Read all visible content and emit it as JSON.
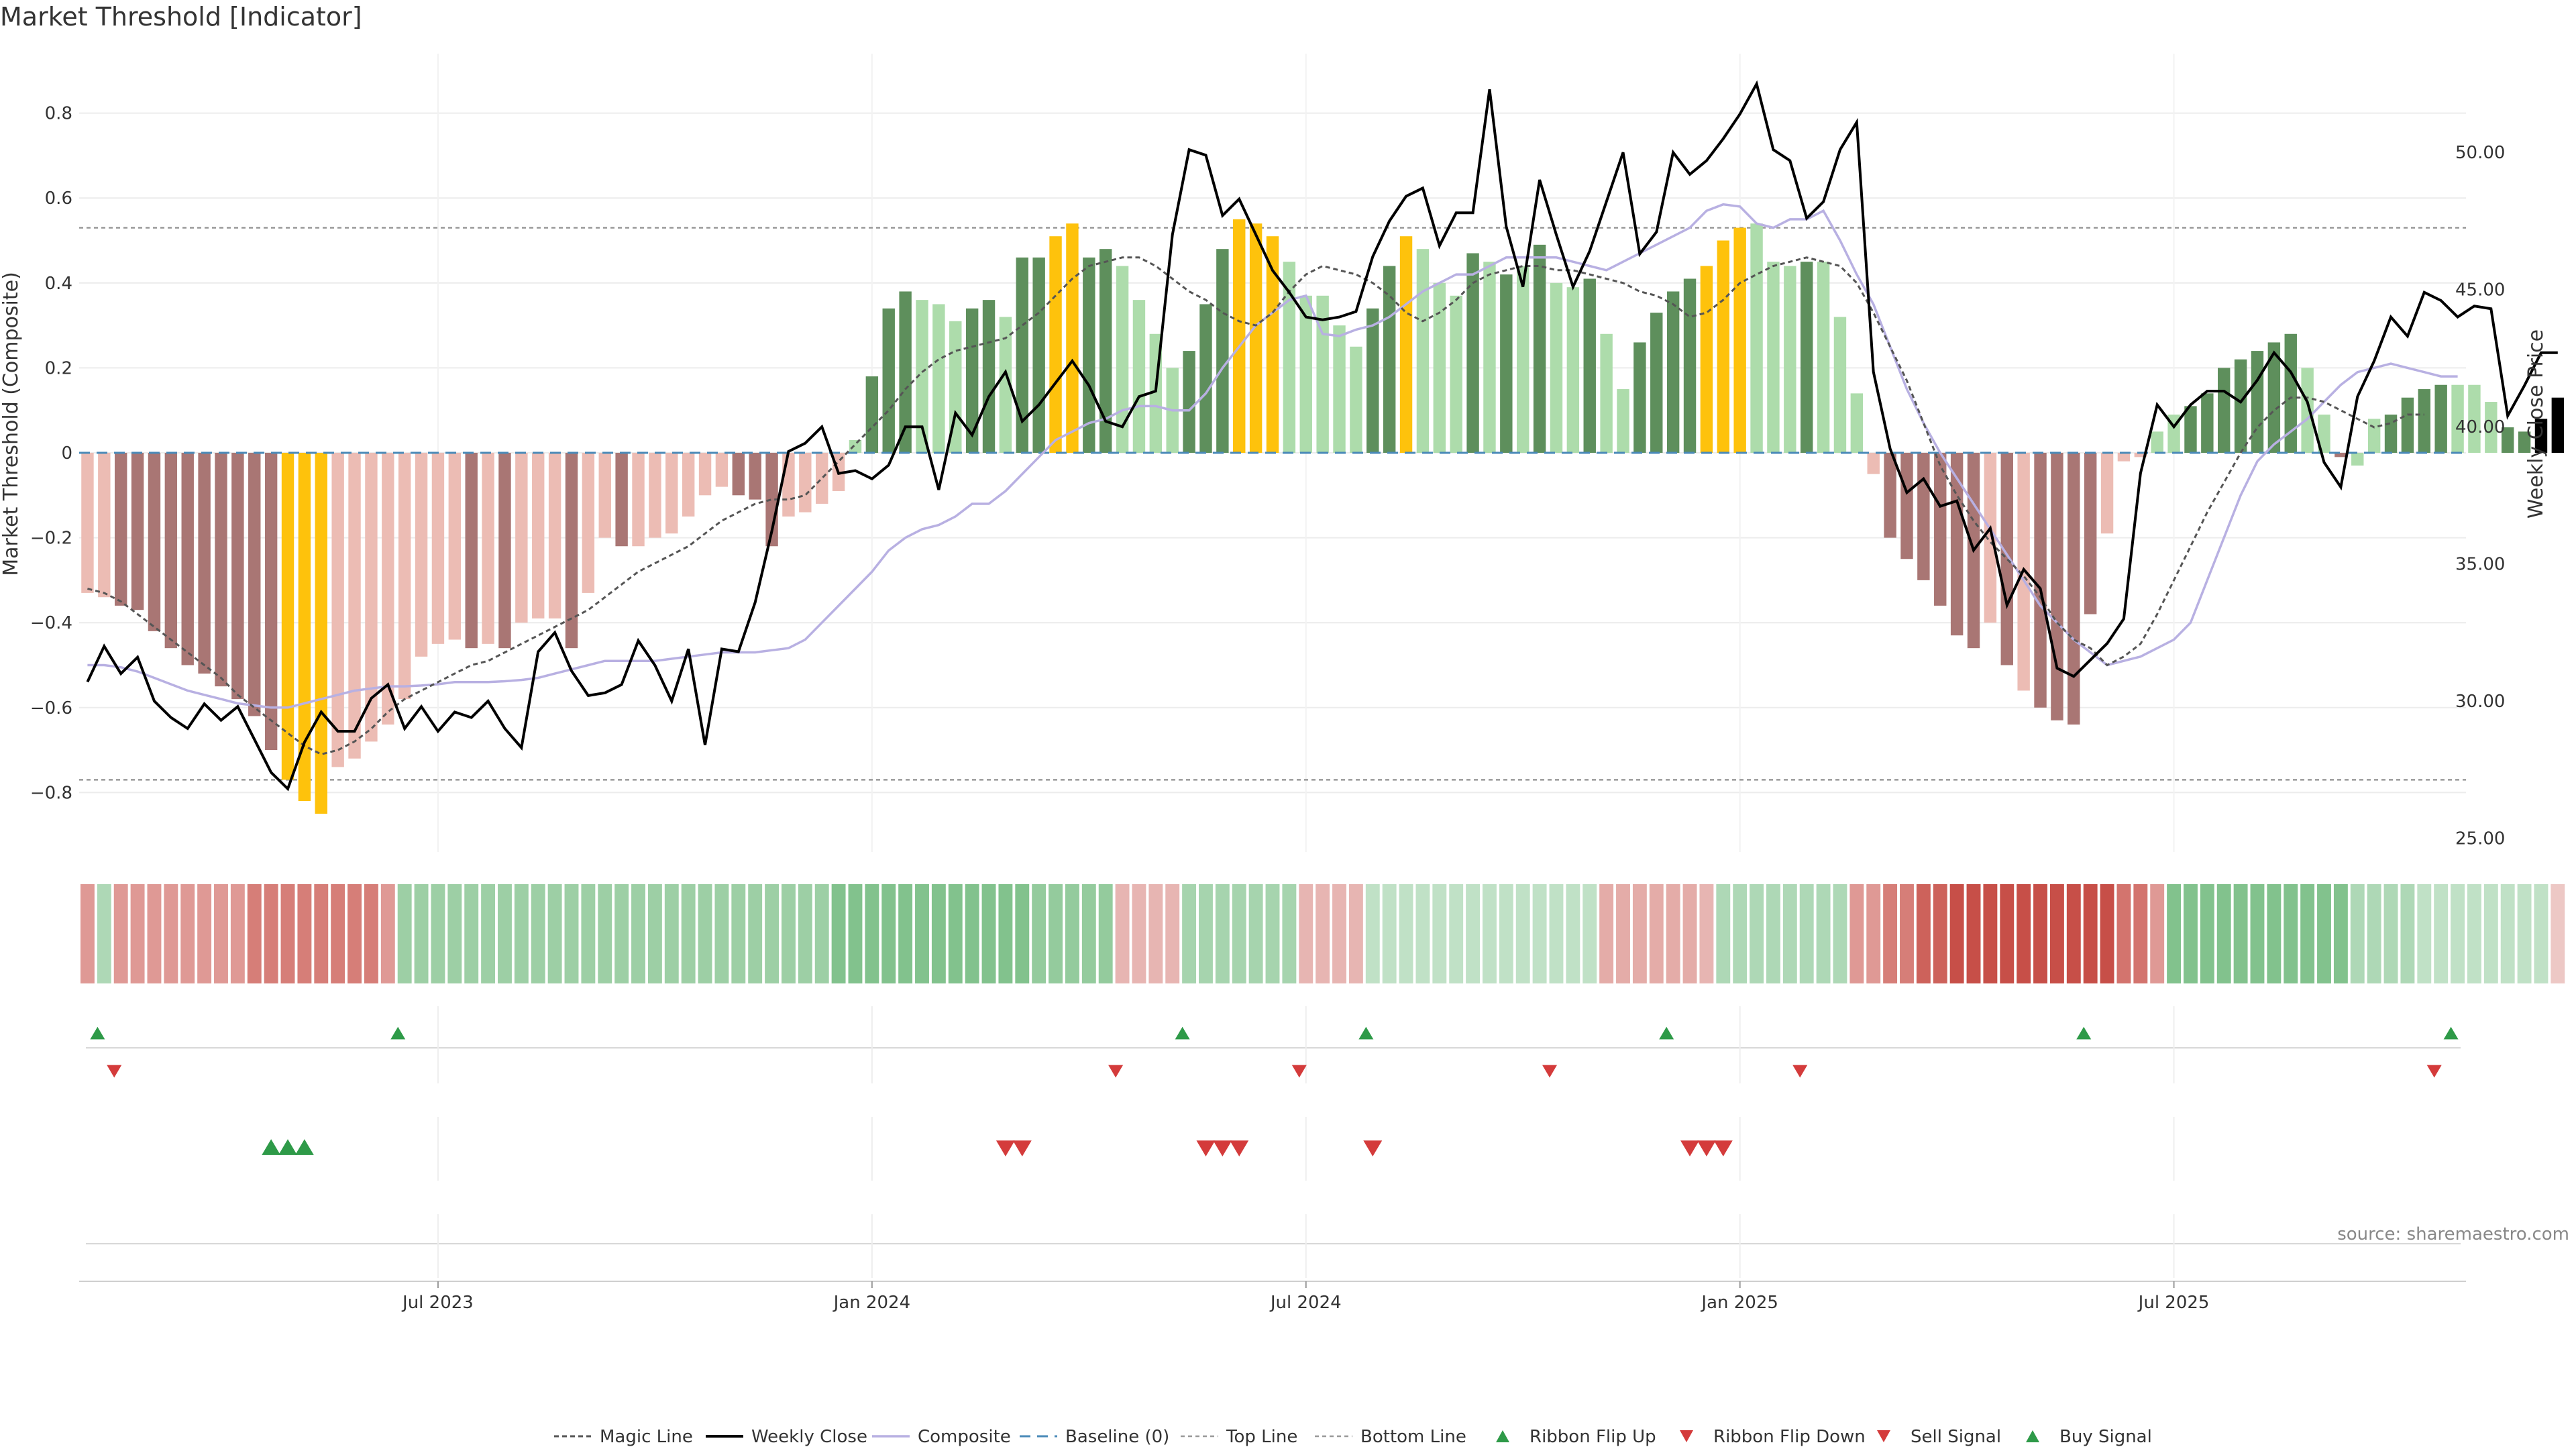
{
  "chart_data": {
    "type": "bar",
    "title": "Market Threshold [Indicator]",
    "source": "source: sharemaestro.com",
    "ylabel_left": "Market Threshold (Composite)",
    "ylabel_right": "Weekly Close Price",
    "y_left_ticks": [
      "0.8",
      "0.6",
      "0.4",
      "0.2",
      "0",
      "−0.2",
      "−0.4",
      "−0.6",
      "−0.8"
    ],
    "y_left_tick_values": [
      0.8,
      0.6,
      0.4,
      0.2,
      0,
      -0.2,
      -0.4,
      -0.6,
      -0.8
    ],
    "y_right_ticks": [
      "50.00",
      "45.00",
      "40.00",
      "35.00",
      "30.00",
      "25.00"
    ],
    "y_right_tick_values": [
      50,
      45,
      40,
      35,
      30,
      25
    ],
    "ylim_left": [
      -0.94,
      0.94
    ],
    "ylim_right": [
      24.5,
      53.6
    ],
    "x_ticks": [
      "Jul 2023",
      "Jan 2024",
      "Jul 2024",
      "Jan 2025",
      "Jul 2025"
    ],
    "x_tick_weeks": [
      21,
      47,
      73,
      99,
      125
    ],
    "n_weeks": 143,
    "top_line": 0.53,
    "bottom_line": -0.77,
    "baseline": 0,
    "colors": {
      "bar_dark_red": "#a97674",
      "bar_light_red": "#ecbcb4",
      "bar_dark_green": "#5e8f5c",
      "bar_light_green": "#addcab",
      "bar_yellow": "#fec20c",
      "close": "#000000",
      "composite": "#b8b0e2",
      "magic": "#555555",
      "baseline": "#4a8ab8",
      "limit": "#999999",
      "up_marker": "#2e9a48",
      "down_marker": "#d43b3b"
    },
    "series": [
      {
        "name": "Composite",
        "values": [
          -0.5,
          -0.5,
          -0.505,
          -0.515,
          -0.53,
          -0.545,
          -0.56,
          -0.57,
          -0.58,
          -0.59,
          -0.595,
          -0.6,
          -0.6,
          -0.59,
          -0.58,
          -0.57,
          -0.56,
          -0.555,
          -0.55,
          -0.55,
          -0.548,
          -0.545,
          -0.54,
          -0.54,
          -0.54,
          -0.538,
          -0.535,
          -0.53,
          -0.52,
          -0.51,
          -0.5,
          -0.49,
          -0.49,
          -0.49,
          -0.49,
          -0.485,
          -0.48,
          -0.475,
          -0.47,
          -0.47,
          -0.47,
          -0.465,
          -0.46,
          -0.44,
          -0.4,
          -0.36,
          -0.32,
          -0.28,
          -0.23,
          -0.2,
          -0.18,
          -0.17,
          -0.15,
          -0.12,
          -0.12,
          -0.09,
          -0.05,
          -0.01,
          0.03,
          0.05,
          0.07,
          0.08,
          0.1,
          0.11,
          0.11,
          0.1,
          0.1,
          0.14,
          0.2,
          0.25,
          0.3,
          0.33,
          0.36,
          0.37,
          0.28,
          0.275,
          0.29,
          0.3,
          0.32,
          0.35,
          0.38,
          0.4,
          0.42,
          0.42,
          0.44,
          0.46,
          0.46,
          0.46,
          0.46,
          0.45,
          0.44,
          0.43,
          0.45,
          0.47,
          0.49,
          0.51,
          0.53,
          0.57,
          0.585,
          0.58,
          0.54,
          0.53,
          0.55,
          0.55,
          0.57,
          0.5,
          0.42,
          0.35,
          0.25,
          0.15,
          0.07,
          0.0,
          -0.06,
          -0.12,
          -0.18,
          -0.24,
          -0.3,
          -0.36,
          -0.4,
          -0.44,
          -0.47,
          -0.5,
          -0.49,
          -0.48,
          -0.46,
          -0.44,
          -0.4,
          -0.3,
          -0.2,
          -0.1,
          -0.02,
          0.02,
          0.05,
          0.08,
          0.12,
          0.16,
          0.19,
          0.2,
          0.21,
          0.2,
          0.19,
          0.18,
          0.18
        ]
      },
      {
        "name": "Magic Line",
        "values": [
          -0.32,
          -0.33,
          -0.35,
          -0.38,
          -0.41,
          -0.44,
          -0.47,
          -0.5,
          -0.53,
          -0.57,
          -0.6,
          -0.63,
          -0.66,
          -0.69,
          -0.71,
          -0.7,
          -0.68,
          -0.65,
          -0.61,
          -0.58,
          -0.56,
          -0.54,
          -0.52,
          -0.5,
          -0.49,
          -0.47,
          -0.45,
          -0.43,
          -0.41,
          -0.39,
          -0.37,
          -0.34,
          -0.31,
          -0.28,
          -0.26,
          -0.24,
          -0.22,
          -0.19,
          -0.16,
          -0.14,
          -0.12,
          -0.11,
          -0.11,
          -0.1,
          -0.06,
          -0.02,
          0.02,
          0.06,
          0.1,
          0.15,
          0.19,
          0.22,
          0.24,
          0.25,
          0.26,
          0.27,
          0.3,
          0.33,
          0.37,
          0.41,
          0.44,
          0.45,
          0.46,
          0.46,
          0.44,
          0.41,
          0.38,
          0.36,
          0.33,
          0.31,
          0.3,
          0.33,
          0.38,
          0.42,
          0.44,
          0.43,
          0.42,
          0.4,
          0.37,
          0.33,
          0.31,
          0.33,
          0.36,
          0.4,
          0.42,
          0.43,
          0.44,
          0.44,
          0.43,
          0.43,
          0.42,
          0.41,
          0.4,
          0.38,
          0.37,
          0.35,
          0.32,
          0.33,
          0.36,
          0.4,
          0.42,
          0.44,
          0.45,
          0.46,
          0.45,
          0.44,
          0.4,
          0.33,
          0.25,
          0.17,
          0.07,
          -0.03,
          -0.1,
          -0.16,
          -0.21,
          -0.25,
          -0.29,
          -0.34,
          -0.4,
          -0.44,
          -0.46,
          -0.5,
          -0.48,
          -0.45,
          -0.38,
          -0.3,
          -0.22,
          -0.14,
          -0.07,
          0.0,
          0.06,
          0.1,
          0.13,
          0.13,
          0.12,
          0.1,
          0.08,
          0.06,
          0.07,
          0.09,
          0.09
        ]
      },
      {
        "name": "Weekly Close",
        "values": [
          30.7,
          32.0,
          31.0,
          31.6,
          30.0,
          29.4,
          29.0,
          29.9,
          29.3,
          29.8,
          28.6,
          27.4,
          26.8,
          28.5,
          29.6,
          28.9,
          28.9,
          30.1,
          30.6,
          29.0,
          29.8,
          28.9,
          29.6,
          29.4,
          30.0,
          29.0,
          28.3,
          31.8,
          32.5,
          31.1,
          30.2,
          30.3,
          30.6,
          32.2,
          31.3,
          30.0,
          31.9,
          28.4,
          31.9,
          31.8,
          33.6,
          36.2,
          39.1,
          39.4,
          40.0,
          38.3,
          38.4,
          38.1,
          38.6,
          40.0,
          40.0,
          37.7,
          40.5,
          39.7,
          41.1,
          42.0,
          40.2,
          40.8,
          41.6,
          42.4,
          41.5,
          40.2,
          40.0,
          41.1,
          41.3,
          47.0,
          50.1,
          49.9,
          47.7,
          48.3,
          47.0,
          45.7,
          44.9,
          44.0,
          43.9,
          44.0,
          44.2,
          46.2,
          47.5,
          48.4,
          48.7,
          46.6,
          47.8,
          47.8,
          52.3,
          47.3,
          45.1,
          49.0,
          47.0,
          45.1,
          46.4,
          48.2,
          50.0,
          46.3,
          47.1,
          50.0,
          49.2,
          49.7,
          50.5,
          51.4,
          52.5,
          50.1,
          49.7,
          47.6,
          48.2,
          50.1,
          51.1,
          42.0,
          39.2,
          37.6,
          38.1,
          37.1,
          37.3,
          35.5,
          36.3,
          33.5,
          34.8,
          34.1,
          31.2,
          30.9,
          31.5,
          32.1,
          33.0,
          38.3,
          40.8,
          40.0,
          40.8,
          41.3,
          41.3,
          40.9,
          41.7,
          42.7,
          42.0,
          40.9,
          38.7,
          37.8,
          41.1,
          42.4,
          44.0,
          43.3,
          44.9,
          44.6,
          44.0,
          44.4,
          44.3,
          40.4,
          41.5,
          42.7,
          42.7
        ]
      },
      {
        "name": "Histogram",
        "values": [
          -0.33,
          -0.34,
          -0.36,
          -0.37,
          -0.42,
          -0.46,
          -0.5,
          -0.52,
          -0.55,
          -0.58,
          -0.62,
          -0.7,
          -0.77,
          -0.82,
          -0.85,
          -0.74,
          -0.72,
          -0.68,
          -0.64,
          -0.58,
          -0.48,
          -0.45,
          -0.44,
          -0.46,
          -0.45,
          -0.46,
          -0.4,
          -0.39,
          -0.39,
          -0.46,
          -0.33,
          -0.2,
          -0.22,
          -0.22,
          -0.2,
          -0.19,
          -0.15,
          -0.1,
          -0.08,
          -0.1,
          -0.11,
          -0.22,
          -0.15,
          -0.14,
          -0.12,
          -0.09,
          0.03,
          0.18,
          0.34,
          0.38,
          0.36,
          0.35,
          0.31,
          0.34,
          0.36,
          0.32,
          0.46,
          0.46,
          0.51,
          0.54,
          0.46,
          0.48,
          0.44,
          0.36,
          0.28,
          0.2,
          0.24,
          0.35,
          0.48,
          0.55,
          0.54,
          0.51,
          0.45,
          0.37,
          0.37,
          0.3,
          0.25,
          0.34,
          0.44,
          0.51,
          0.48,
          0.4,
          0.37,
          0.47,
          0.45,
          0.42,
          0.44,
          0.49,
          0.4,
          0.39,
          0.41,
          0.28,
          0.15,
          0.26,
          0.33,
          0.38,
          0.41,
          0.44,
          0.5,
          0.53,
          0.54,
          0.45,
          0.44,
          0.45,
          0.45,
          0.32,
          0.14,
          -0.05,
          -0.2,
          -0.25,
          -0.3,
          -0.36,
          -0.43,
          -0.46,
          -0.4,
          -0.5,
          -0.56,
          -0.6,
          -0.63,
          -0.64,
          -0.38,
          -0.19,
          -0.02,
          -0.01,
          0.05,
          0.09,
          0.11,
          0.14,
          0.2,
          0.22,
          0.24,
          0.26,
          0.28,
          0.2,
          0.09,
          -0.01,
          -0.03,
          0.08,
          0.09,
          0.13,
          0.15,
          0.16,
          0.16,
          0.16,
          0.12,
          0.06,
          0.05,
          0.08,
          0.13
        ]
      },
      {
        "name": "Bar Color",
        "values": [
          "light_red",
          "light_red",
          "dark_red",
          "dark_red",
          "dark_red",
          "dark_red",
          "dark_red",
          "dark_red",
          "dark_red",
          "dark_red",
          "dark_red",
          "dark_red",
          "yellow",
          "yellow",
          "yellow",
          "light_red",
          "light_red",
          "light_red",
          "light_red",
          "light_red",
          "light_red",
          "light_red",
          "light_red",
          "dark_red",
          "light_red",
          "dark_red",
          "light_red",
          "light_red",
          "light_red",
          "dark_red",
          "light_red",
          "light_red",
          "dark_red",
          "light_red",
          "light_red",
          "light_red",
          "light_red",
          "light_red",
          "light_red",
          "dark_red",
          "dark_red",
          "dark_red",
          "light_red",
          "light_red",
          "light_red",
          "light_red",
          "light_green",
          "dark_green",
          "dark_green",
          "dark_green",
          "light_green",
          "light_green",
          "light_green",
          "dark_green",
          "dark_green",
          "light_green",
          "dark_green",
          "dark_green",
          "yellow",
          "yellow",
          "dark_green",
          "dark_green",
          "light_green",
          "light_green",
          "light_green",
          "light_green",
          "dark_green",
          "dark_green",
          "dark_green",
          "yellow",
          "yellow",
          "yellow",
          "light_green",
          "light_green",
          "light_green",
          "light_green",
          "light_green",
          "dark_green",
          "dark_green",
          "yellow",
          "light_green",
          "light_green",
          "light_green",
          "dark_green",
          "light_green",
          "dark_green",
          "light_green",
          "dark_green",
          "light_green",
          "light_green",
          "dark_green",
          "light_green",
          "light_green",
          "dark_green",
          "dark_green",
          "dark_green",
          "dark_green",
          "yellow",
          "yellow",
          "yellow",
          "light_green",
          "light_green",
          "light_green",
          "dark_green",
          "light_green",
          "light_green",
          "light_green",
          "light_red",
          "dark_red",
          "dark_red",
          "dark_red",
          "dark_red",
          "dark_red",
          "dark_red",
          "light_red",
          "dark_red",
          "light_red",
          "dark_red",
          "dark_red",
          "dark_red",
          "dark_red",
          "light_red",
          "light_red",
          "light_red",
          "light_green",
          "light_green",
          "dark_green",
          "dark_green",
          "dark_green",
          "dark_green",
          "dark_green",
          "dark_green",
          "dark_green",
          "light_green",
          "light_green",
          "dark_red",
          "light_green",
          "light_green",
          "dark_green",
          "dark_green",
          "dark_green",
          "dark_green",
          "light_green",
          "light_green",
          "light_green",
          "dark_green",
          "dark_green"
        ]
      },
      {
        "name": "Ribbon",
        "values": [
          -0.55,
          0.45,
          -0.55,
          -0.55,
          -0.55,
          -0.55,
          -0.55,
          -0.55,
          -0.55,
          -0.55,
          -0.7,
          -0.7,
          -0.7,
          -0.7,
          -0.7,
          -0.7,
          -0.7,
          -0.7,
          -0.55,
          0.55,
          0.55,
          0.55,
          0.55,
          0.55,
          0.55,
          0.55,
          0.55,
          0.55,
          0.55,
          0.55,
          0.55,
          0.55,
          0.55,
          0.55,
          0.55,
          0.55,
          0.55,
          0.55,
          0.55,
          0.55,
          0.55,
          0.55,
          0.55,
          0.55,
          0.55,
          0.7,
          0.7,
          0.7,
          0.7,
          0.7,
          0.7,
          0.7,
          0.7,
          0.7,
          0.7,
          0.7,
          0.7,
          0.6,
          0.6,
          0.6,
          0.6,
          0.6,
          -0.4,
          -0.4,
          -0.4,
          -0.4,
          0.5,
          0.5,
          0.5,
          0.5,
          0.5,
          0.5,
          0.5,
          -0.4,
          -0.4,
          -0.4,
          -0.4,
          0.35,
          0.35,
          0.35,
          0.35,
          0.35,
          0.35,
          0.35,
          0.35,
          0.35,
          0.35,
          0.35,
          0.35,
          0.35,
          0.35,
          -0.45,
          -0.45,
          -0.45,
          -0.45,
          -0.45,
          -0.45,
          -0.4,
          0.45,
          0.45,
          0.45,
          0.45,
          0.45,
          0.45,
          0.45,
          0.45,
          -0.55,
          -0.55,
          -0.7,
          -0.7,
          -0.85,
          -0.85,
          -0.95,
          -0.95,
          -0.95,
          -0.95,
          -0.95,
          -0.95,
          -0.95,
          -0.95,
          -0.95,
          -0.95,
          -0.75,
          -0.75,
          -0.55,
          0.7,
          0.7,
          0.7,
          0.7,
          0.7,
          0.7,
          0.7,
          0.7,
          0.7,
          0.7,
          0.7,
          0.45,
          0.45,
          0.45,
          0.45,
          0.35,
          0.35,
          0.35,
          0.35,
          0.35,
          0.35,
          0.35,
          0.35,
          -0.3
        ]
      }
    ],
    "ribbon_flip_up_weeks": [
      1,
      19,
      66,
      77,
      95,
      120,
      142
    ],
    "ribbon_flip_down_weeks": [
      2,
      62,
      73,
      88,
      103,
      141
    ],
    "sell_signal_weeks": [
      55,
      56,
      67,
      68,
      69,
      77,
      96,
      97,
      98
    ],
    "buy_signal_weeks": [
      11,
      12,
      13
    ],
    "legend": [
      "Magic Line",
      "Weekly Close",
      "Composite",
      "Baseline (0)",
      "Top Line",
      "Bottom Line",
      "Ribbon Flip Up",
      "Ribbon Flip Down",
      "Sell Signal",
      "Buy Signal"
    ]
  }
}
